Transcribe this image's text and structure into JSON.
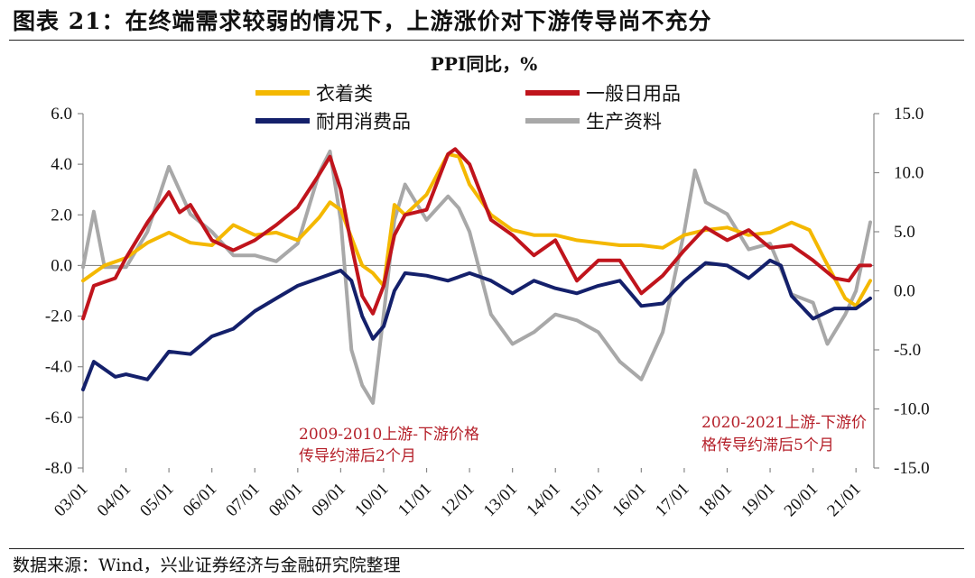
{
  "figure": {
    "title": "图表 21：在终端需求较弱的情况下，上游涨价对下游传导尚不充分",
    "source": "数据来源：Wind，兴业证券经济与金融研究院整理"
  },
  "chart_data": {
    "type": "line",
    "title": "PPI同比，%",
    "x_tick_labels": [
      "03/01",
      "04/01",
      "05/01",
      "06/01",
      "07/01",
      "08/01",
      "09/01",
      "10/01",
      "11/01",
      "12/01",
      "13/01",
      "14/01",
      "15/01",
      "16/01",
      "17/01",
      "18/01",
      "19/01",
      "20/01",
      "21/01"
    ],
    "x_range": [
      "2003-01",
      "2021-06"
    ],
    "y_left": {
      "range": [
        -8,
        6
      ],
      "ticks": [
        "6.0",
        "4.0",
        "2.0",
        "0.0",
        "-2.0",
        "-4.0",
        "-6.0",
        "-8.0"
      ]
    },
    "y_right": {
      "range": [
        -15,
        15
      ],
      "ticks": [
        "15.0",
        "10.0",
        "5.0",
        "0.0",
        "-5.0",
        "-10.0",
        "-15.0"
      ]
    },
    "zero_line": true,
    "grid": false,
    "legend_position": "top",
    "series": [
      {
        "name": "衣着类",
        "axis": "left",
        "color": "#f4b800",
        "points": [
          [
            "2003-01",
            -0.6
          ],
          [
            "2003-07",
            0.0
          ],
          [
            "2004-01",
            0.3
          ],
          [
            "2004-07",
            0.9
          ],
          [
            "2005-01",
            1.3
          ],
          [
            "2005-07",
            0.9
          ],
          [
            "2006-01",
            0.8
          ],
          [
            "2006-07",
            1.6
          ],
          [
            "2007-01",
            1.2
          ],
          [
            "2007-07",
            1.3
          ],
          [
            "2008-01",
            1.0
          ],
          [
            "2008-07",
            1.9
          ],
          [
            "2008-10",
            2.5
          ],
          [
            "2009-01",
            2.2
          ],
          [
            "2009-07",
            0.0
          ],
          [
            "2009-10",
            -0.3
          ],
          [
            "2010-01",
            -0.8
          ],
          [
            "2010-04",
            2.4
          ],
          [
            "2010-07",
            2.0
          ],
          [
            "2011-01",
            2.8
          ],
          [
            "2011-07",
            4.4
          ],
          [
            "2011-10",
            4.3
          ],
          [
            "2012-01",
            3.2
          ],
          [
            "2012-07",
            2.0
          ],
          [
            "2013-01",
            1.4
          ],
          [
            "2013-07",
            1.2
          ],
          [
            "2014-01",
            1.2
          ],
          [
            "2014-07",
            1.0
          ],
          [
            "2015-01",
            0.9
          ],
          [
            "2015-07",
            0.8
          ],
          [
            "2016-01",
            0.8
          ],
          [
            "2016-07",
            0.7
          ],
          [
            "2017-01",
            1.2
          ],
          [
            "2017-07",
            1.4
          ],
          [
            "2018-01",
            1.5
          ],
          [
            "2018-07",
            1.2
          ],
          [
            "2019-01",
            1.3
          ],
          [
            "2019-07",
            1.7
          ],
          [
            "2019-12",
            1.4
          ],
          [
            "2020-04",
            0.3
          ],
          [
            "2020-10",
            -1.3
          ],
          [
            "2021-01",
            -1.6
          ],
          [
            "2021-05",
            -0.6
          ]
        ]
      },
      {
        "name": "一般日用品",
        "axis": "left",
        "color": "#c0141c",
        "points": [
          [
            "2003-01",
            -2.1
          ],
          [
            "2003-04",
            -0.8
          ],
          [
            "2003-10",
            -0.5
          ],
          [
            "2004-01",
            0.3
          ],
          [
            "2004-07",
            1.7
          ],
          [
            "2005-01",
            2.9
          ],
          [
            "2005-04",
            2.1
          ],
          [
            "2005-07",
            2.4
          ],
          [
            "2006-01",
            1.0
          ],
          [
            "2006-07",
            0.6
          ],
          [
            "2007-01",
            1.0
          ],
          [
            "2007-07",
            1.6
          ],
          [
            "2008-01",
            2.3
          ],
          [
            "2008-07",
            3.6
          ],
          [
            "2008-10",
            4.3
          ],
          [
            "2009-01",
            3.0
          ],
          [
            "2009-04",
            0.8
          ],
          [
            "2009-07",
            -1.2
          ],
          [
            "2009-10",
            -1.9
          ],
          [
            "2010-01",
            -0.8
          ],
          [
            "2010-04",
            1.2
          ],
          [
            "2010-07",
            2.0
          ],
          [
            "2011-01",
            2.2
          ],
          [
            "2011-07",
            4.4
          ],
          [
            "2011-09",
            4.6
          ],
          [
            "2012-01",
            4.0
          ],
          [
            "2012-07",
            1.8
          ],
          [
            "2013-01",
            1.2
          ],
          [
            "2013-07",
            0.4
          ],
          [
            "2014-01",
            1.0
          ],
          [
            "2014-07",
            -0.6
          ],
          [
            "2015-01",
            0.2
          ],
          [
            "2015-07",
            0.2
          ],
          [
            "2016-01",
            -1.1
          ],
          [
            "2016-07",
            -0.4
          ],
          [
            "2017-01",
            0.6
          ],
          [
            "2017-07",
            1.5
          ],
          [
            "2018-01",
            1.0
          ],
          [
            "2018-07",
            1.4
          ],
          [
            "2019-01",
            0.7
          ],
          [
            "2019-07",
            0.8
          ],
          [
            "2020-01",
            0.2
          ],
          [
            "2020-07",
            -0.5
          ],
          [
            "2020-11",
            -0.6
          ],
          [
            "2021-02",
            0.0
          ],
          [
            "2021-05",
            0.0
          ]
        ]
      },
      {
        "name": "耐用消费品",
        "axis": "left",
        "color": "#14206b",
        "points": [
          [
            "2003-01",
            -4.9
          ],
          [
            "2003-04",
            -3.8
          ],
          [
            "2003-10",
            -4.4
          ],
          [
            "2004-01",
            -4.3
          ],
          [
            "2004-07",
            -4.5
          ],
          [
            "2005-01",
            -3.4
          ],
          [
            "2005-07",
            -3.5
          ],
          [
            "2006-01",
            -2.8
          ],
          [
            "2006-07",
            -2.5
          ],
          [
            "2007-01",
            -1.8
          ],
          [
            "2007-07",
            -1.3
          ],
          [
            "2008-01",
            -0.8
          ],
          [
            "2008-07",
            -0.5
          ],
          [
            "2009-01",
            -0.2
          ],
          [
            "2009-04",
            -0.6
          ],
          [
            "2009-07",
            -2.0
          ],
          [
            "2009-10",
            -2.9
          ],
          [
            "2010-01",
            -2.4
          ],
          [
            "2010-04",
            -1.0
          ],
          [
            "2010-07",
            -0.3
          ],
          [
            "2011-01",
            -0.4
          ],
          [
            "2011-07",
            -0.6
          ],
          [
            "2012-01",
            -0.3
          ],
          [
            "2012-07",
            -0.6
          ],
          [
            "2013-01",
            -1.1
          ],
          [
            "2013-07",
            -0.6
          ],
          [
            "2014-01",
            -0.9
          ],
          [
            "2014-07",
            -1.1
          ],
          [
            "2015-01",
            -0.8
          ],
          [
            "2015-07",
            -0.6
          ],
          [
            "2016-01",
            -1.6
          ],
          [
            "2016-07",
            -1.5
          ],
          [
            "2017-01",
            -0.6
          ],
          [
            "2017-07",
            0.1
          ],
          [
            "2018-01",
            0.0
          ],
          [
            "2018-07",
            -0.5
          ],
          [
            "2019-01",
            0.2
          ],
          [
            "2019-04",
            0.0
          ],
          [
            "2019-07",
            -1.2
          ],
          [
            "2020-01",
            -2.1
          ],
          [
            "2020-07",
            -1.7
          ],
          [
            "2021-01",
            -1.7
          ],
          [
            "2021-05",
            -1.3
          ]
        ]
      },
      {
        "name": "生产资料",
        "axis": "right",
        "color": "#a8a8a8",
        "points": [
          [
            "2003-01",
            2.0
          ],
          [
            "2003-04",
            6.7
          ],
          [
            "2003-07",
            2.0
          ],
          [
            "2003-10",
            2.0
          ],
          [
            "2004-01",
            2.0
          ],
          [
            "2004-07",
            5.0
          ],
          [
            "2005-01",
            10.5
          ],
          [
            "2005-07",
            6.5
          ],
          [
            "2006-01",
            5.0
          ],
          [
            "2006-07",
            3.0
          ],
          [
            "2007-01",
            3.0
          ],
          [
            "2007-07",
            2.5
          ],
          [
            "2008-01",
            4.0
          ],
          [
            "2008-07",
            10.0
          ],
          [
            "2008-10",
            11.8
          ],
          [
            "2009-01",
            6.0
          ],
          [
            "2009-04",
            -5.0
          ],
          [
            "2009-07",
            -8.0
          ],
          [
            "2009-10",
            -9.5
          ],
          [
            "2010-01",
            -2.0
          ],
          [
            "2010-04",
            6.0
          ],
          [
            "2010-07",
            9.0
          ],
          [
            "2011-01",
            6.0
          ],
          [
            "2011-07",
            8.0
          ],
          [
            "2011-10",
            7.0
          ],
          [
            "2012-01",
            5.0
          ],
          [
            "2012-07",
            -2.0
          ],
          [
            "2013-01",
            -4.5
          ],
          [
            "2013-07",
            -3.5
          ],
          [
            "2014-01",
            -2.0
          ],
          [
            "2014-07",
            -2.5
          ],
          [
            "2015-01",
            -3.5
          ],
          [
            "2015-07",
            -6.0
          ],
          [
            "2016-01",
            -7.5
          ],
          [
            "2016-07",
            -3.5
          ],
          [
            "2017-01",
            5.0
          ],
          [
            "2017-04",
            10.2
          ],
          [
            "2017-07",
            7.5
          ],
          [
            "2018-01",
            6.5
          ],
          [
            "2018-07",
            3.5
          ],
          [
            "2019-01",
            4.0
          ],
          [
            "2019-07",
            -0.3
          ],
          [
            "2020-01",
            -1.0
          ],
          [
            "2020-05",
            -4.5
          ],
          [
            "2020-10",
            -2.0
          ],
          [
            "2021-01",
            0.0
          ],
          [
            "2021-05",
            5.8
          ]
        ]
      }
    ],
    "annotations": [
      {
        "lines": [
          "2009-2010上游-下游价格",
          "传导约滞后2个月"
        ]
      },
      {
        "lines": [
          "2020-2021上游-下游价",
          "格传导约滞后5个月"
        ]
      }
    ]
  }
}
